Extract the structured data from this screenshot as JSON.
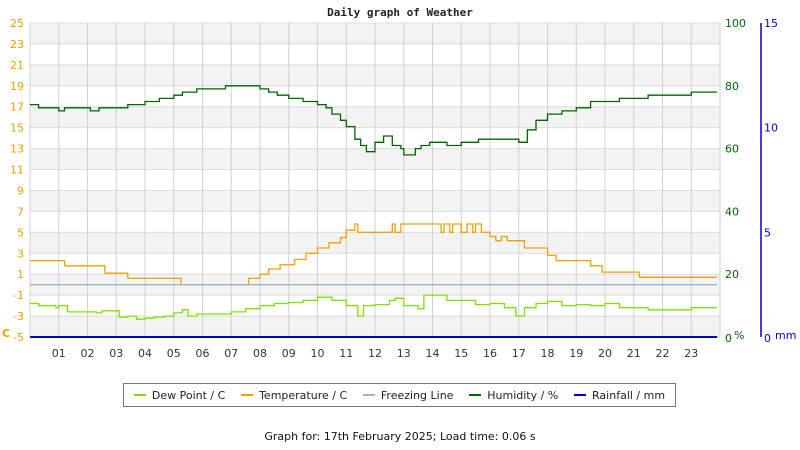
{
  "chart_data": {
    "type": "line",
    "title": "Daily graph of Weather",
    "xlabel": "",
    "ylabel_left": "C",
    "ylabel_right": "%",
    "ylabel_right2": "mm",
    "x_ticks": [
      "01",
      "02",
      "03",
      "04",
      "05",
      "06",
      "07",
      "08",
      "09",
      "10",
      "11",
      "12",
      "13",
      "14",
      "15",
      "16",
      "17",
      "18",
      "19",
      "20",
      "21",
      "22",
      "23"
    ],
    "y_left_ticks": [
      25,
      23,
      21,
      19,
      17,
      15,
      13,
      11,
      9,
      7,
      5,
      3,
      1,
      -1,
      -3,
      -5
    ],
    "y_left_range": [
      -5,
      25
    ],
    "y_right_ticks": [
      100,
      80,
      60,
      40,
      20,
      0
    ],
    "y_right_range": [
      0,
      100
    ],
    "y_right2_ticks": [
      15,
      10,
      5,
      0
    ],
    "y_right2_range": [
      0,
      15
    ],
    "grid": true,
    "legend_position": "bottom",
    "series": [
      {
        "name": "Dew Point / C",
        "color": "#7fe000",
        "axis": "left",
        "points": [
          [
            0,
            -1.8
          ],
          [
            0.3,
            -2.0
          ],
          [
            0.6,
            -2.0
          ],
          [
            0.9,
            -2.2
          ],
          [
            1.0,
            -2.0
          ],
          [
            1.2,
            -2.0
          ],
          [
            1.3,
            -2.6
          ],
          [
            2.0,
            -2.6
          ],
          [
            2.3,
            -2.7
          ],
          [
            2.5,
            -2.5
          ],
          [
            3.0,
            -2.5
          ],
          [
            3.1,
            -3.1
          ],
          [
            3.4,
            -3.0
          ],
          [
            3.7,
            -3.3
          ],
          [
            4.0,
            -3.2
          ],
          [
            4.3,
            -3.1
          ],
          [
            4.7,
            -3.0
          ],
          [
            5.0,
            -2.7
          ],
          [
            5.3,
            -2.4
          ],
          [
            5.5,
            -3.0
          ],
          [
            5.8,
            -2.8
          ],
          [
            6.5,
            -2.8
          ],
          [
            7.0,
            -2.6
          ],
          [
            7.5,
            -2.3
          ],
          [
            8.0,
            -2.0
          ],
          [
            8.5,
            -1.8
          ],
          [
            9.0,
            -1.7
          ],
          [
            9.5,
            -1.5
          ],
          [
            10.0,
            -1.2
          ],
          [
            10.5,
            -1.5
          ],
          [
            11.0,
            -2.0
          ],
          [
            11.4,
            -3.0
          ],
          [
            11.6,
            -2.0
          ],
          [
            12.0,
            -1.9
          ],
          [
            12.5,
            -1.5
          ],
          [
            12.7,
            -1.3
          ],
          [
            13.0,
            -2.0
          ],
          [
            13.5,
            -2.3
          ],
          [
            13.7,
            -1.0
          ],
          [
            14.0,
            -1.0
          ],
          [
            14.5,
            -1.5
          ],
          [
            15.0,
            -1.5
          ],
          [
            15.5,
            -1.9
          ],
          [
            16.0,
            -1.8
          ],
          [
            16.5,
            -2.2
          ],
          [
            16.9,
            -3.0
          ],
          [
            17.2,
            -2.2
          ],
          [
            17.6,
            -1.8
          ],
          [
            18.0,
            -1.6
          ],
          [
            18.5,
            -2.0
          ],
          [
            19.0,
            -1.9
          ],
          [
            19.5,
            -2.0
          ],
          [
            20.0,
            -1.8
          ],
          [
            20.5,
            -2.2
          ],
          [
            21.0,
            -2.2
          ],
          [
            21.5,
            -2.4
          ],
          [
            23.0,
            -2.2
          ],
          [
            23.9,
            -2.2
          ]
        ]
      },
      {
        "name": "Temperature / C",
        "color": "#f0a000",
        "axis": "left",
        "points": [
          [
            0,
            2.3
          ],
          [
            1.2,
            1.8
          ],
          [
            2.6,
            1.1
          ],
          [
            3.4,
            0.6
          ],
          [
            5.2,
            0.6
          ],
          [
            5.25,
            0
          ],
          [
            7.5,
            0
          ],
          [
            7.6,
            0.6
          ],
          [
            8.0,
            1.0
          ],
          [
            8.3,
            1.5
          ],
          [
            8.7,
            1.9
          ],
          [
            9.2,
            2.4
          ],
          [
            9.6,
            3.0
          ],
          [
            10.0,
            3.5
          ],
          [
            10.4,
            4.0
          ],
          [
            10.8,
            4.5
          ],
          [
            11.0,
            5.2
          ],
          [
            11.3,
            5.8
          ],
          [
            11.4,
            5.0
          ],
          [
            12.5,
            5.0
          ],
          [
            12.6,
            5.8
          ],
          [
            12.7,
            5.0
          ],
          [
            12.9,
            5.8
          ],
          [
            14.2,
            5.8
          ],
          [
            14.3,
            5.0
          ],
          [
            14.4,
            5.8
          ],
          [
            14.6,
            5.0
          ],
          [
            14.7,
            5.8
          ],
          [
            15.0,
            5.0
          ],
          [
            15.2,
            5.8
          ],
          [
            15.4,
            5.0
          ],
          [
            15.5,
            5.8
          ],
          [
            15.7,
            5.0
          ],
          [
            16.0,
            4.6
          ],
          [
            16.2,
            4.2
          ],
          [
            16.4,
            4.6
          ],
          [
            16.6,
            4.2
          ],
          [
            17.2,
            3.5
          ],
          [
            18.0,
            2.8
          ],
          [
            18.3,
            2.3
          ],
          [
            19.5,
            1.8
          ],
          [
            19.9,
            1.2
          ],
          [
            21.2,
            0.7
          ],
          [
            23.9,
            0.7
          ]
        ]
      },
      {
        "name": "Freezing Line",
        "color": "#a0b4c8",
        "axis": "left",
        "points": [
          [
            0,
            0
          ],
          [
            23.9,
            0
          ]
        ]
      },
      {
        "name": "Humidity / %",
        "color": "#006400",
        "axis": "right",
        "points": [
          [
            0,
            74
          ],
          [
            0.3,
            73
          ],
          [
            0.8,
            73
          ],
          [
            1.0,
            72
          ],
          [
            1.2,
            73
          ],
          [
            2.0,
            73
          ],
          [
            2.1,
            72
          ],
          [
            2.4,
            73
          ],
          [
            3.0,
            73
          ],
          [
            3.4,
            74
          ],
          [
            4.0,
            75
          ],
          [
            4.5,
            76
          ],
          [
            5.0,
            77
          ],
          [
            5.3,
            78
          ],
          [
            5.8,
            79
          ],
          [
            6.5,
            79
          ],
          [
            6.8,
            80
          ],
          [
            7.6,
            80
          ],
          [
            8.0,
            79
          ],
          [
            8.3,
            78
          ],
          [
            8.6,
            77
          ],
          [
            9.0,
            76
          ],
          [
            9.5,
            75
          ],
          [
            10.0,
            74
          ],
          [
            10.3,
            73
          ],
          [
            10.5,
            71
          ],
          [
            10.8,
            69
          ],
          [
            11.0,
            67
          ],
          [
            11.3,
            63
          ],
          [
            11.5,
            61
          ],
          [
            11.7,
            59
          ],
          [
            12.0,
            62
          ],
          [
            12.3,
            64
          ],
          [
            12.6,
            61
          ],
          [
            12.9,
            60
          ],
          [
            13.0,
            58
          ],
          [
            13.4,
            60
          ],
          [
            13.6,
            61
          ],
          [
            13.9,
            62
          ],
          [
            14.2,
            62
          ],
          [
            14.5,
            61
          ],
          [
            15.0,
            62
          ],
          [
            15.6,
            63
          ],
          [
            16.0,
            63
          ],
          [
            16.5,
            63
          ],
          [
            17.0,
            62
          ],
          [
            17.3,
            66
          ],
          [
            17.6,
            69
          ],
          [
            18.0,
            71
          ],
          [
            18.5,
            72
          ],
          [
            19.0,
            73
          ],
          [
            19.5,
            75
          ],
          [
            20.0,
            75
          ],
          [
            20.5,
            76
          ],
          [
            21.5,
            77
          ],
          [
            22.5,
            77
          ],
          [
            23.0,
            78
          ],
          [
            23.9,
            78
          ]
        ]
      },
      {
        "name": "Rainfall / mm",
        "color": "#0000cc",
        "axis": "right2",
        "points": [
          [
            0,
            0
          ],
          [
            23.9,
            0
          ]
        ]
      }
    ]
  },
  "legend": {
    "items": [
      {
        "label": "Dew Point / C",
        "color": "#7fe000"
      },
      {
        "label": "Temperature / C",
        "color": "#f0a000"
      },
      {
        "label": "Freezing Line",
        "color": "#a0b4c8"
      },
      {
        "label": "Humidity / %",
        "color": "#006400"
      },
      {
        "label": "Rainfall / mm",
        "color": "#0000cc"
      }
    ]
  },
  "footer": {
    "text": "Graph for: 17th February 2025; Load time: 0.06 s"
  }
}
